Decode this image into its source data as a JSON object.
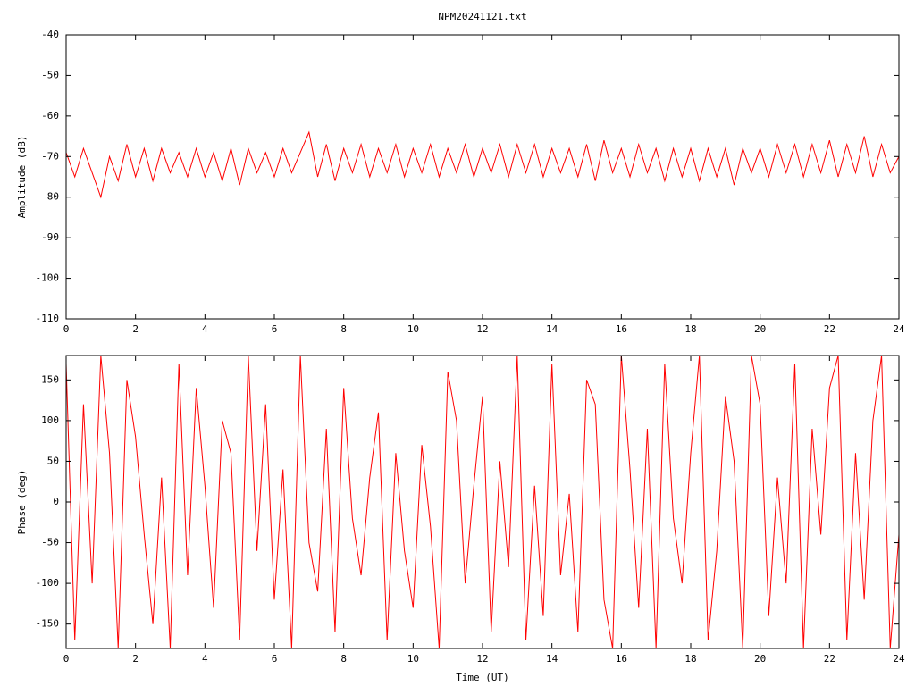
{
  "chart_data": [
    {
      "type": "line",
      "title": "NPM20241121.txt",
      "ylabel": "Amplitude (dB)",
      "color": "#ff0000",
      "xlim": [
        0,
        24
      ],
      "xticks": [
        0,
        2,
        4,
        6,
        8,
        10,
        12,
        14,
        16,
        18,
        20,
        22,
        24
      ],
      "ylim": [
        -110,
        -40
      ],
      "yticks": [
        -110,
        -100,
        -90,
        -80,
        -70,
        -60,
        -50,
        -40
      ],
      "x": [
        0,
        0.25,
        0.5,
        0.75,
        1,
        1.25,
        1.5,
        1.75,
        2,
        2.25,
        2.5,
        2.75,
        3,
        3.25,
        3.5,
        3.75,
        4,
        4.25,
        4.5,
        4.75,
        5,
        5.25,
        5.5,
        5.75,
        6,
        6.25,
        6.5,
        6.75,
        7,
        7.25,
        7.5,
        7.75,
        8,
        8.25,
        8.5,
        8.75,
        9,
        9.25,
        9.5,
        9.75,
        10,
        10.25,
        10.5,
        10.75,
        11,
        11.25,
        11.5,
        11.75,
        12,
        12.25,
        12.5,
        12.75,
        13,
        13.25,
        13.5,
        13.75,
        14,
        14.25,
        14.5,
        14.75,
        15,
        15.25,
        15.5,
        15.75,
        16,
        16.25,
        16.5,
        16.75,
        17,
        17.25,
        17.5,
        17.75,
        18,
        18.25,
        18.5,
        18.75,
        19,
        19.25,
        19.5,
        19.75,
        20,
        20.25,
        20.5,
        20.75,
        21,
        21.25,
        21.5,
        21.75,
        22,
        22.25,
        22.5,
        22.75,
        23,
        23.25,
        23.5,
        23.75,
        24
      ],
      "values": [
        -69,
        -75,
        -68,
        -74,
        -80,
        -70,
        -76,
        -67,
        -75,
        -68,
        -76,
        -68,
        -74,
        -69,
        -75,
        -68,
        -75,
        -69,
        -76,
        -68,
        -77,
        -68,
        -74,
        -69,
        -75,
        -68,
        -74,
        -69,
        -64,
        -75,
        -67,
        -76,
        -68,
        -74,
        -67,
        -75,
        -68,
        -74,
        -67,
        -75,
        -68,
        -74,
        -67,
        -75,
        -68,
        -74,
        -67,
        -75,
        -68,
        -74,
        -67,
        -75,
        -67,
        -74,
        -67,
        -75,
        -68,
        -74,
        -68,
        -75,
        -67,
        -76,
        -66,
        -74,
        -68,
        -75,
        -67,
        -74,
        -68,
        -76,
        -68,
        -75,
        -68,
        -76,
        -68,
        -75,
        -68,
        -77,
        -68,
        -74,
        -68,
        -75,
        -67,
        -74,
        -67,
        -75,
        -67,
        -74,
        -66,
        -75,
        -67,
        -74,
        -65,
        -75,
        -67,
        -74,
        -70
      ]
    },
    {
      "type": "line",
      "xlabel": "Time (UT)",
      "ylabel": "Phase (deg)",
      "color": "#ff0000",
      "xlim": [
        0,
        24
      ],
      "xticks": [
        0,
        2,
        4,
        6,
        8,
        10,
        12,
        14,
        16,
        18,
        20,
        22,
        24
      ],
      "ylim": [
        -180,
        180
      ],
      "yticks": [
        -150,
        -100,
        -50,
        0,
        50,
        100,
        150
      ],
      "x": [
        0,
        0.25,
        0.5,
        0.75,
        1,
        1.25,
        1.5,
        1.75,
        2,
        2.25,
        2.5,
        2.75,
        3,
        3.25,
        3.5,
        3.75,
        4,
        4.25,
        4.5,
        4.75,
        5,
        5.25,
        5.5,
        5.75,
        6,
        6.25,
        6.5,
        6.75,
        7,
        7.25,
        7.5,
        7.75,
        8,
        8.25,
        8.5,
        8.75,
        9,
        9.25,
        9.5,
        9.75,
        10,
        10.25,
        10.5,
        10.75,
        11,
        11.25,
        11.5,
        11.75,
        12,
        12.25,
        12.5,
        12.75,
        13,
        13.25,
        13.5,
        13.75,
        14,
        14.25,
        14.5,
        14.75,
        15,
        15.25,
        15.5,
        15.75,
        16,
        16.25,
        16.5,
        16.75,
        17,
        17.25,
        17.5,
        17.75,
        18,
        18.25,
        18.5,
        18.75,
        19,
        19.25,
        19.5,
        19.75,
        20,
        20.25,
        20.5,
        20.75,
        21,
        21.25,
        21.5,
        21.75,
        22,
        22.25,
        22.5,
        22.75,
        23,
        23.25,
        23.5,
        23.75,
        24
      ],
      "values": [
        170,
        -170,
        120,
        -100,
        180,
        60,
        -180,
        150,
        80,
        -40,
        -150,
        30,
        -180,
        170,
        -90,
        140,
        20,
        -130,
        100,
        60,
        -170,
        180,
        -60,
        120,
        -120,
        40,
        -180,
        180,
        -50,
        -110,
        90,
        -160,
        140,
        -20,
        -90,
        30,
        110,
        -170,
        60,
        -60,
        -130,
        70,
        -30,
        -180,
        160,
        100,
        -100,
        20,
        130,
        -160,
        50,
        -80,
        180,
        -170,
        20,
        -140,
        170,
        -90,
        10,
        -160,
        150,
        120,
        -120,
        -180,
        180,
        40,
        -130,
        90,
        -180,
        170,
        -20,
        -100,
        60,
        180,
        -170,
        -60,
        130,
        50,
        -180,
        180,
        120,
        -140,
        30,
        -100,
        170,
        -180,
        90,
        -40,
        140,
        180,
        -170,
        60,
        -120,
        100,
        180,
        -180,
        -40
      ]
    }
  ]
}
